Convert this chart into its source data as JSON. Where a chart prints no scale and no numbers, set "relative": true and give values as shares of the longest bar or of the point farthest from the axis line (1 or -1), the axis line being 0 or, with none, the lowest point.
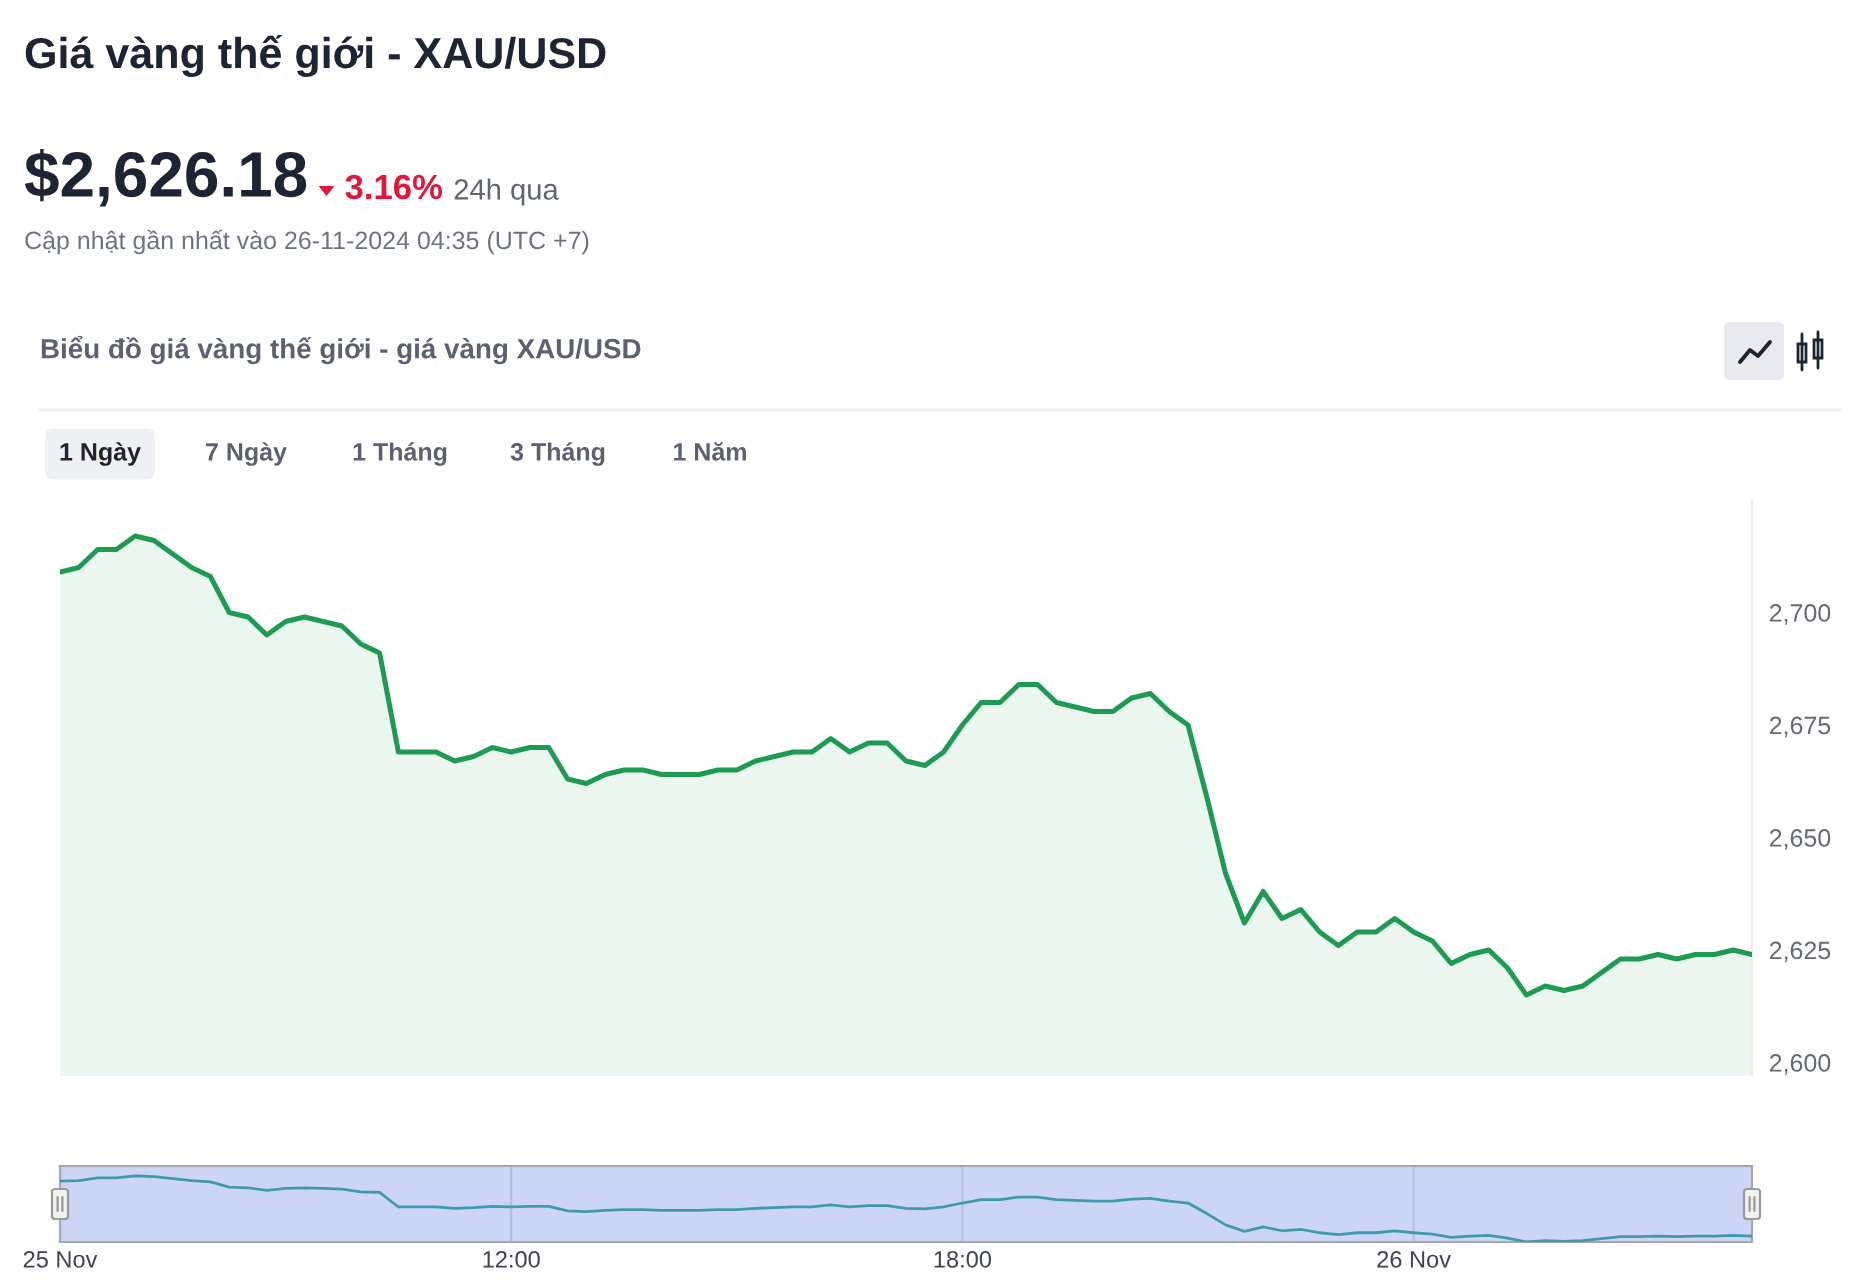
{
  "chart_data": [
    {
      "type": "area",
      "title": "Giá vàng thế giới - XAU/USD",
      "subtitle": "Biểu đồ giá vàng thế giới - giá vàng XAU/USD",
      "annotations": [
        "$2,626.18",
        "3.16%",
        "24h qua",
        "Cập nhật gần nhất vào 26-11-2024 04:35 (UTC +7)",
        "1 Ngày",
        "7 Ngày",
        "1 Tháng",
        "3 Tháng",
        "1 Năm"
      ],
      "x": [
        "2024-11-25T06:00",
        "2024-11-25T06:15",
        "2024-11-25T06:30",
        "2024-11-25T06:45",
        "2024-11-25T07:00",
        "2024-11-25T07:15",
        "2024-11-25T07:30",
        "2024-11-25T07:45",
        "2024-11-25T08:00",
        "2024-11-25T08:15",
        "2024-11-25T08:30",
        "2024-11-25T08:45",
        "2024-11-25T09:00",
        "2024-11-25T09:15",
        "2024-11-25T09:30",
        "2024-11-25T09:45",
        "2024-11-25T10:00",
        "2024-11-25T10:15",
        "2024-11-25T10:30",
        "2024-11-25T10:45",
        "2024-11-25T11:00",
        "2024-11-25T11:15",
        "2024-11-25T11:30",
        "2024-11-25T11:45",
        "2024-11-25T12:00",
        "2024-11-25T12:15",
        "2024-11-25T12:30",
        "2024-11-25T12:45",
        "2024-11-25T13:00",
        "2024-11-25T13:15",
        "2024-11-25T13:30",
        "2024-11-25T13:45",
        "2024-11-25T14:00",
        "2024-11-25T14:15",
        "2024-11-25T14:30",
        "2024-11-25T14:45",
        "2024-11-25T15:00",
        "2024-11-25T15:15",
        "2024-11-25T15:30",
        "2024-11-25T15:45",
        "2024-11-25T16:00",
        "2024-11-25T16:15",
        "2024-11-25T16:30",
        "2024-11-25T16:45",
        "2024-11-25T17:00",
        "2024-11-25T17:15",
        "2024-11-25T17:30",
        "2024-11-25T17:45",
        "2024-11-25T18:00",
        "2024-11-25T18:15",
        "2024-11-25T18:30",
        "2024-11-25T18:45",
        "2024-11-25T19:00",
        "2024-11-25T19:15",
        "2024-11-25T19:30",
        "2024-11-25T19:45",
        "2024-11-25T20:00",
        "2024-11-25T20:15",
        "2024-11-25T20:30",
        "2024-11-25T20:45",
        "2024-11-25T21:00",
        "2024-11-25T21:15",
        "2024-11-25T21:30",
        "2024-11-25T21:45",
        "2024-11-25T22:00",
        "2024-11-25T22:15",
        "2024-11-25T22:30",
        "2024-11-25T22:45",
        "2024-11-25T23:00",
        "2024-11-25T23:15",
        "2024-11-25T23:30",
        "2024-11-25T23:45",
        "2024-11-26T00:00",
        "2024-11-26T00:15",
        "2024-11-26T00:30",
        "2024-11-26T00:45",
        "2024-11-26T01:00",
        "2024-11-26T01:15",
        "2024-11-26T01:30",
        "2024-11-26T01:45",
        "2024-11-26T02:00",
        "2024-11-26T02:15",
        "2024-11-26T02:30",
        "2024-11-26T02:45",
        "2024-11-26T03:00",
        "2024-11-26T03:15",
        "2024-11-26T03:30",
        "2024-11-26T03:45",
        "2024-11-26T04:00",
        "2024-11-26T04:15",
        "2024-11-26T04:30"
      ],
      "series": [
        {
          "color": "#1e9b52",
          "values": [
            2709,
            2710,
            2714,
            2714,
            2717,
            2716,
            2713,
            2710,
            2708,
            2700,
            2699,
            2695,
            2698,
            2699,
            2698,
            2697,
            2693,
            2691,
            2669,
            2669,
            2669,
            2667,
            2668,
            2670,
            2669,
            2670,
            2670,
            2663,
            2662,
            2664,
            2665,
            2665,
            2664,
            2664,
            2664,
            2665,
            2665,
            2667,
            2668,
            2669,
            2669,
            2672,
            2669,
            2671,
            2671,
            2667,
            2666,
            2669,
            2675,
            2680,
            2680,
            2684,
            2684,
            2680,
            2679,
            2678,
            2678,
            2681,
            2682,
            2678,
            2675,
            2659,
            2642,
            2631,
            2638,
            2632,
            2634,
            2629,
            2626,
            2629,
            2629,
            2632,
            2629,
            2627,
            2622,
            2624,
            2625,
            2621,
            2615,
            2617,
            2616,
            2617,
            2620,
            2623,
            2623,
            2624,
            2623,
            2624,
            2624,
            2625,
            2624
          ]
        }
      ],
      "xlim": [
        "2024-11-25T06:00",
        "2024-11-26T04:30"
      ],
      "ylim": [
        2597,
        2725
      ],
      "yticks": [
        {
          "value": 2600,
          "label": "2,600"
        },
        {
          "value": 2625,
          "label": "2,625"
        },
        {
          "value": 2650,
          "label": "2,650"
        },
        {
          "value": 2675,
          "label": "2,675"
        },
        {
          "value": 2700,
          "label": "2,700"
        }
      ],
      "tick_labels": "y"
    },
    {
      "type": "line",
      "relative": true,
      "x": [
        "2024-11-25T06:00",
        "2024-11-25T06:15",
        "2024-11-25T06:30",
        "2024-11-25T06:45",
        "2024-11-25T07:00",
        "2024-11-25T07:15",
        "2024-11-25T07:30",
        "2024-11-25T07:45",
        "2024-11-25T08:00",
        "2024-11-25T08:15",
        "2024-11-25T08:30",
        "2024-11-25T08:45",
        "2024-11-25T09:00",
        "2024-11-25T09:15",
        "2024-11-25T09:30",
        "2024-11-25T09:45",
        "2024-11-25T10:00",
        "2024-11-25T10:15",
        "2024-11-25T10:30",
        "2024-11-25T10:45",
        "2024-11-25T11:00",
        "2024-11-25T11:15",
        "2024-11-25T11:30",
        "2024-11-25T11:45",
        "2024-11-25T12:00",
        "2024-11-25T12:15",
        "2024-11-25T12:30",
        "2024-11-25T12:45",
        "2024-11-25T13:00",
        "2024-11-25T13:15",
        "2024-11-25T13:30",
        "2024-11-25T13:45",
        "2024-11-25T14:00",
        "2024-11-25T14:15",
        "2024-11-25T14:30",
        "2024-11-25T14:45",
        "2024-11-25T15:00",
        "2024-11-25T15:15",
        "2024-11-25T15:30",
        "2024-11-25T15:45",
        "2024-11-25T16:00",
        "2024-11-25T16:15",
        "2024-11-25T16:30",
        "2024-11-25T16:45",
        "2024-11-25T17:00",
        "2024-11-25T17:15",
        "2024-11-25T17:30",
        "2024-11-25T17:45",
        "2024-11-25T18:00",
        "2024-11-25T18:15",
        "2024-11-25T18:30",
        "2024-11-25T18:45",
        "2024-11-25T19:00",
        "2024-11-25T19:15",
        "2024-11-25T19:30",
        "2024-11-25T19:45",
        "2024-11-25T20:00",
        "2024-11-25T20:15",
        "2024-11-25T20:30",
        "2024-11-25T20:45",
        "2024-11-25T21:00",
        "2024-11-25T21:15",
        "2024-11-25T21:30",
        "2024-11-25T21:45",
        "2024-11-25T22:00",
        "2024-11-25T22:15",
        "2024-11-25T22:30",
        "2024-11-25T22:45",
        "2024-11-25T23:00",
        "2024-11-25T23:15",
        "2024-11-25T23:30",
        "2024-11-25T23:45",
        "2024-11-26T00:00",
        "2024-11-26T00:15",
        "2024-11-26T00:30",
        "2024-11-26T00:45",
        "2024-11-26T01:00",
        "2024-11-26T01:15",
        "2024-11-26T01:30",
        "2024-11-26T01:45",
        "2024-11-26T02:00",
        "2024-11-26T02:15",
        "2024-11-26T02:30",
        "2024-11-26T02:45",
        "2024-11-26T03:00",
        "2024-11-26T03:15",
        "2024-11-26T03:30",
        "2024-11-26T03:45",
        "2024-11-26T04:00",
        "2024-11-26T04:15",
        "2024-11-26T04:30"
      ],
      "series": [
        {
          "color": "#3f9aae",
          "values": [
            0.92,
            0.93,
            0.97,
            0.97,
            1,
            0.99,
            0.96,
            0.93,
            0.91,
            0.83,
            0.82,
            0.78,
            0.81,
            0.82,
            0.81,
            0.8,
            0.76,
            0.75,
            0.53,
            0.53,
            0.53,
            0.51,
            0.52,
            0.54,
            0.53,
            0.54,
            0.54,
            0.47,
            0.46,
            0.48,
            0.49,
            0.49,
            0.48,
            0.48,
            0.48,
            0.49,
            0.49,
            0.51,
            0.52,
            0.53,
            0.53,
            0.56,
            0.53,
            0.55,
            0.55,
            0.51,
            0.5,
            0.53,
            0.59,
            0.64,
            0.64,
            0.68,
            0.68,
            0.64,
            0.63,
            0.62,
            0.62,
            0.65,
            0.66,
            0.62,
            0.59,
            0.43,
            0.26,
            0.16,
            0.23,
            0.17,
            0.19,
            0.14,
            0.11,
            0.14,
            0.14,
            0.17,
            0.14,
            0.12,
            0.07,
            0.09,
            0.1,
            0.06,
            0,
            0.02,
            0.01,
            0.02,
            0.05,
            0.08,
            0.08,
            0.09,
            0.08,
            0.09,
            0.09,
            0.1,
            0.09
          ]
        }
      ],
      "xlim": [
        "2024-11-25T06:00",
        "2024-11-26T04:30"
      ],
      "xticks": [
        {
          "value": "2024-11-25T06:00",
          "label": "25 Nov"
        },
        {
          "value": "2024-11-25T12:00",
          "label": "12:00"
        },
        {
          "value": "2024-11-25T18:00",
          "label": "18:00"
        },
        {
          "value": "2024-11-26T00:00",
          "label": "26 Nov"
        }
      ],
      "tick_labels": "x",
      "grid": "x",
      "bands": [
        {
          "axis": "x",
          "from": "2024-11-25T06:00",
          "to": "2024-11-26T04:30",
          "color": "#cdd5f6"
        }
      ]
    }
  ]
}
